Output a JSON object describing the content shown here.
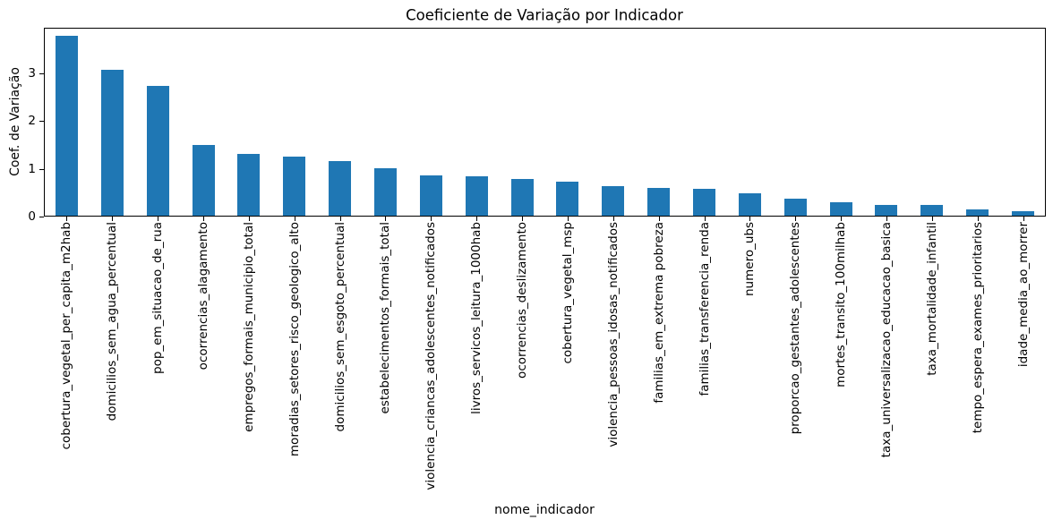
{
  "chart_data": {
    "type": "bar",
    "title": "Coeficiente de Variação por Indicador",
    "xlabel": "nome_indicador",
    "ylabel": "Coef. de Variação",
    "categories": [
      "cobertura_vegetal_per_capita_m2hab",
      "domicilios_sem_agua_percentual",
      "pop_em_situacao_de_rua",
      "ocorrencias_alagamento",
      "empregos_formais_municipio_total",
      "moradias_setores_risco_geologico_alto",
      "domicilios_sem_esgoto_percentual",
      "estabelecimentos_formais_total",
      "violencia_criancas_adolescentes_notificados",
      "livros_servicos_leitura_1000hab",
      "ocorrencias_deslizamento",
      "cobertura_vegetal_msp",
      "violencia_pessoas_idosas_notificados",
      "familias_em_extrema pobreza",
      "familias_transferencia_renda",
      "numero_ubs",
      "proporcao_gestantes_adolescentes",
      "mortes_transito_100milhab",
      "taxa_universalizacao_educacao_basica",
      "taxa_mortalidade_infantil",
      "tempo_espera_exames_prioritarios",
      "idade_media_ao_morrer"
    ],
    "values": [
      3.77,
      3.05,
      2.72,
      1.48,
      1.3,
      1.23,
      1.15,
      1.0,
      0.85,
      0.83,
      0.77,
      0.71,
      0.62,
      0.58,
      0.56,
      0.47,
      0.35,
      0.29,
      0.23,
      0.22,
      0.13,
      0.09
    ],
    "yticks": [
      0,
      1,
      2,
      3
    ],
    "ylim": [
      0,
      3.96
    ],
    "bar_color": "#1f77b4",
    "axis_color": "#000000",
    "background_color": "#ffffff",
    "grid": false,
    "bar_width_fraction": 0.5
  }
}
